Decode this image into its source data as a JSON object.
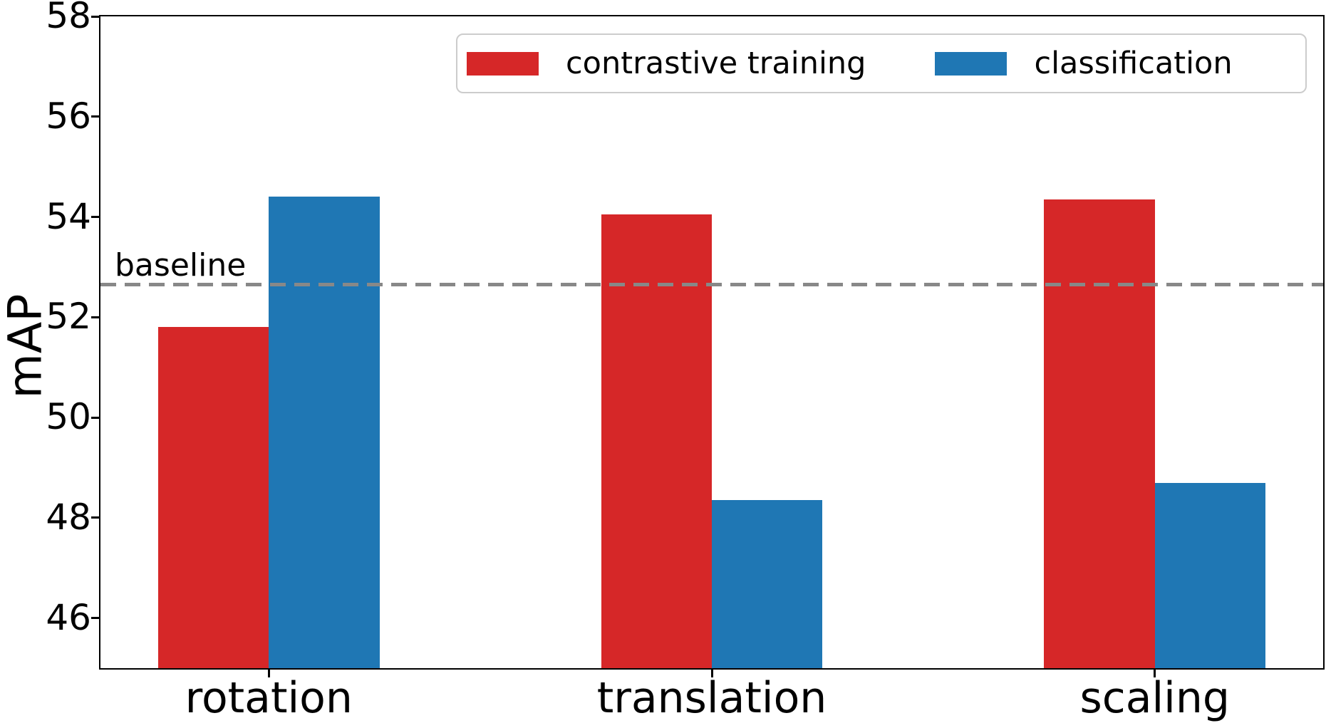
{
  "chart_data": {
    "type": "bar",
    "title": "",
    "xlabel": "",
    "ylabel": "mAP",
    "categories": [
      "rotation",
      "translation",
      "scaling"
    ],
    "series": [
      {
        "name": "contrastive training",
        "color": "#d62728",
        "values": [
          51.8,
          54.05,
          54.35
        ]
      },
      {
        "name": "classification",
        "color": "#1f77b4",
        "values": [
          54.4,
          48.35,
          48.7
        ]
      }
    ],
    "baseline": {
      "label": "baseline",
      "value": 52.65,
      "color": "#888888",
      "style": "dashed"
    },
    "ylim": [
      45,
      58
    ],
    "yticks": [
      46,
      48,
      50,
      52,
      54,
      56,
      58
    ],
    "xlim": [
      -0.38,
      2.38
    ],
    "bar_width": 0.25,
    "grid": false,
    "legend_position": "upper center"
  }
}
